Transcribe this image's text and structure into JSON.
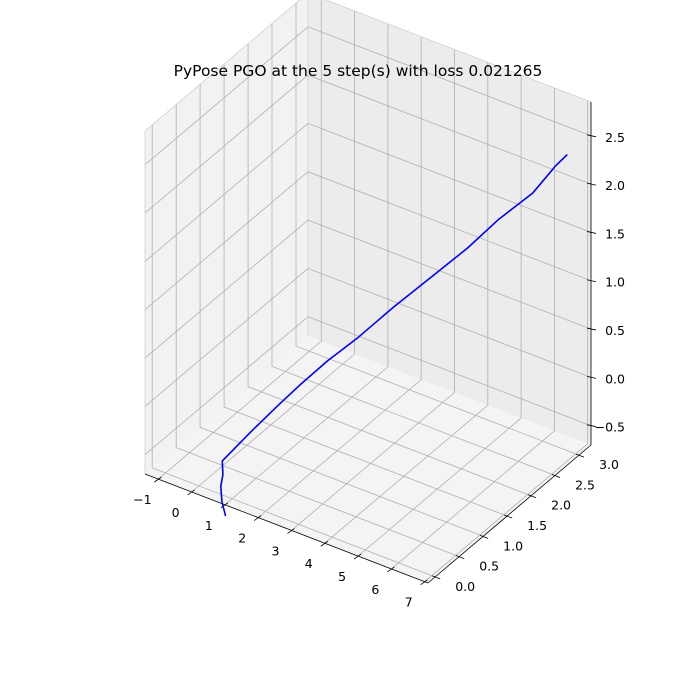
{
  "chart_data": {
    "type": "line",
    "projection": "3d",
    "title": "PyPose PGO at the 5 step(s) with loss 0.021265",
    "xlabel": "",
    "ylabel": "",
    "zlabel": "",
    "grid": true,
    "legend": "none",
    "xlim": [
      -1.4,
      7.1
    ],
    "ylim": [
      -0.15,
      3.25
    ],
    "zlim": [
      -0.7,
      2.85
    ],
    "x_ticks": [
      "−1",
      "0",
      "1",
      "2",
      "3",
      "4",
      "5",
      "6",
      "7"
    ],
    "y_ticks": [
      "0.0",
      "0.5",
      "1.0",
      "1.5",
      "2.0",
      "2.5",
      "3.0"
    ],
    "z_ticks": [
      "−0.5",
      "0.0",
      "0.5",
      "1.0",
      "1.5",
      "2.0",
      "2.5"
    ],
    "series": [
      {
        "color": "#0000ff",
        "points": [
          [
            0.8,
            0.0,
            -0.9
          ],
          [
            0.55,
            0.1,
            -0.83
          ],
          [
            0.3,
            0.25,
            -0.77
          ],
          [
            0.22,
            0.35,
            -0.7
          ],
          [
            0.16,
            0.38,
            -0.58
          ],
          [
            0.7,
            0.6,
            -0.3
          ],
          [
            1.25,
            0.8,
            -0.03
          ],
          [
            1.7,
            0.95,
            0.18
          ],
          [
            2.2,
            1.15,
            0.4
          ],
          [
            2.85,
            1.35,
            0.65
          ],
          [
            3.55,
            1.6,
            0.95
          ],
          [
            4.3,
            1.85,
            1.25
          ],
          [
            5.05,
            2.1,
            1.55
          ],
          [
            5.7,
            2.3,
            1.85
          ],
          [
            6.35,
            2.55,
            2.1
          ],
          [
            6.75,
            2.75,
            2.35
          ],
          [
            6.95,
            2.85,
            2.45
          ]
        ]
      }
    ]
  },
  "colors": {
    "pane_left": "#f2f2f2",
    "pane_back": "#ececec",
    "pane_floor": "#f4f4f4",
    "grid": "#b0b0b0",
    "axis": "#000000",
    "line": "#0000ff"
  }
}
